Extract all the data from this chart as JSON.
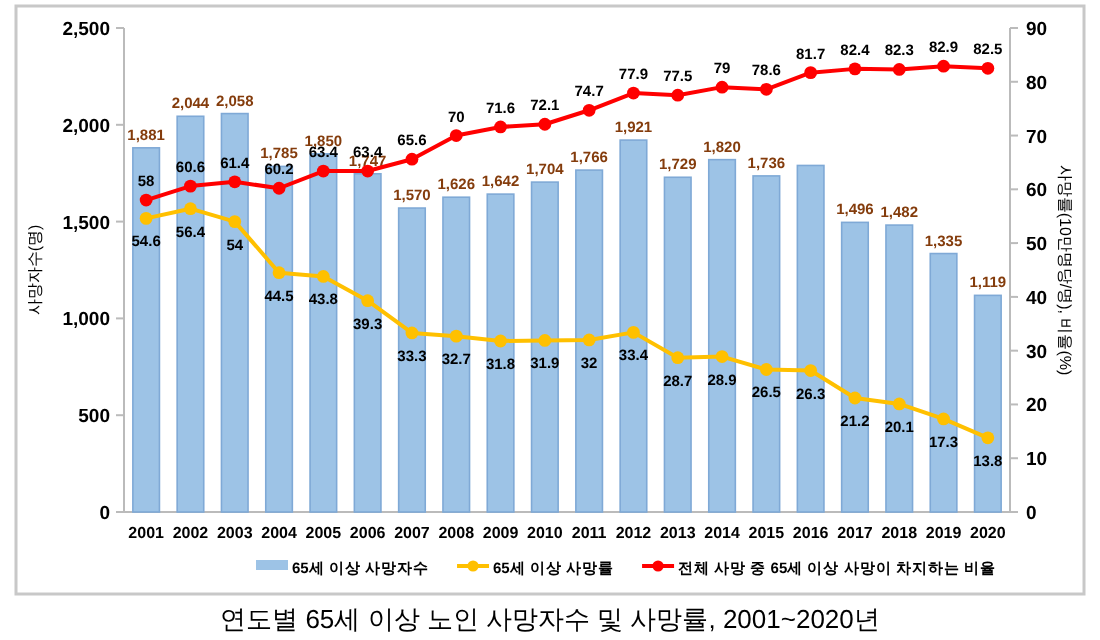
{
  "chart_data": {
    "type": "bar",
    "title": "연도별 65세 이상 노인 사망자수 및 사망률, 2001~2020년",
    "ylabel": "사망자수(명)",
    "y2label": "사망률(10만명당/명), 비율(%)",
    "categories": [
      "2001",
      "2002",
      "2003",
      "2004",
      "2005",
      "2006",
      "2007",
      "2008",
      "2009",
      "2010",
      "2011",
      "2012",
      "2013",
      "2014",
      "2015",
      "2016",
      "2017",
      "2018",
      "2019",
      "2020"
    ],
    "series": [
      {
        "name": "65세 이상 사망자수",
        "color": "#9dc3e6",
        "values": [
          1881,
          2044,
          2058,
          1785,
          1850,
          1747,
          1570,
          1626,
          1642,
          1704,
          1766,
          1921,
          1729,
          1820,
          1736,
          1790,
          1496,
          1482,
          1335,
          1119
        ],
        "value_labels": [
          "1,881",
          "2,044",
          "2,058",
          "1,785",
          "1,850",
          "1,747",
          "1,570",
          "1,626",
          "1,642",
          "1,704",
          "1,766",
          "1,921",
          "1,729",
          "1,820",
          "1,736",
          null,
          "1,496",
          "1,482",
          "1,335",
          "1,119"
        ]
      },
      {
        "name": "65세 이상 사망률",
        "type": "line",
        "axis": "y2",
        "color": "#ffc000",
        "values": [
          54.6,
          56.4,
          54,
          44.5,
          43.8,
          39.3,
          33.3,
          32.7,
          31.8,
          31.9,
          32,
          33.4,
          28.7,
          28.9,
          26.5,
          26.3,
          21.2,
          20.1,
          17.3,
          13.8
        ],
        "value_labels": [
          "54.6",
          "56.4",
          "54",
          "44.5",
          "43.8",
          "39.3",
          "33.3",
          "32.7",
          "31.8",
          "31.9",
          "32",
          "33.4",
          "28.7",
          "28.9",
          "26.5",
          "26.3",
          "21.2",
          "20.1",
          "17.3",
          "13.8"
        ]
      },
      {
        "name": "전체 사망 중 65세 이상 사망이 차지하는 비율",
        "type": "line",
        "axis": "y2",
        "color": "#ff0000",
        "values": [
          58,
          60.6,
          61.4,
          60.2,
          63.4,
          63.4,
          65.6,
          70,
          71.6,
          72.1,
          74.7,
          77.9,
          77.5,
          79,
          78.6,
          81.7,
          82.4,
          82.3,
          82.9,
          82.5
        ],
        "value_labels": [
          "58",
          "60.6",
          "61.4",
          "60.2",
          "63.4",
          "63.4",
          "65.6",
          "70",
          "71.6",
          "72.1",
          "74.7",
          "77.9",
          "77.5",
          "79",
          "78.6",
          "81.7",
          "82.4",
          "82.3",
          "82.9",
          "82.5"
        ]
      }
    ],
    "ylim": [
      0,
      2500
    ],
    "yticks": [
      {
        "value": 0,
        "label": "0"
      },
      {
        "value": 500,
        "label": "500"
      },
      {
        "value": 1000,
        "label": "1,000"
      },
      {
        "value": 1500,
        "label": "1,500"
      },
      {
        "value": 2000,
        "label": "2,000"
      },
      {
        "value": 2500,
        "label": "2,500"
      }
    ],
    "y2lim": [
      0,
      90
    ],
    "y2ticks": [
      0,
      10,
      20,
      30,
      40,
      50,
      60,
      70,
      80,
      90
    ],
    "marker": "circle",
    "grid": false,
    "legend": "bottom"
  }
}
